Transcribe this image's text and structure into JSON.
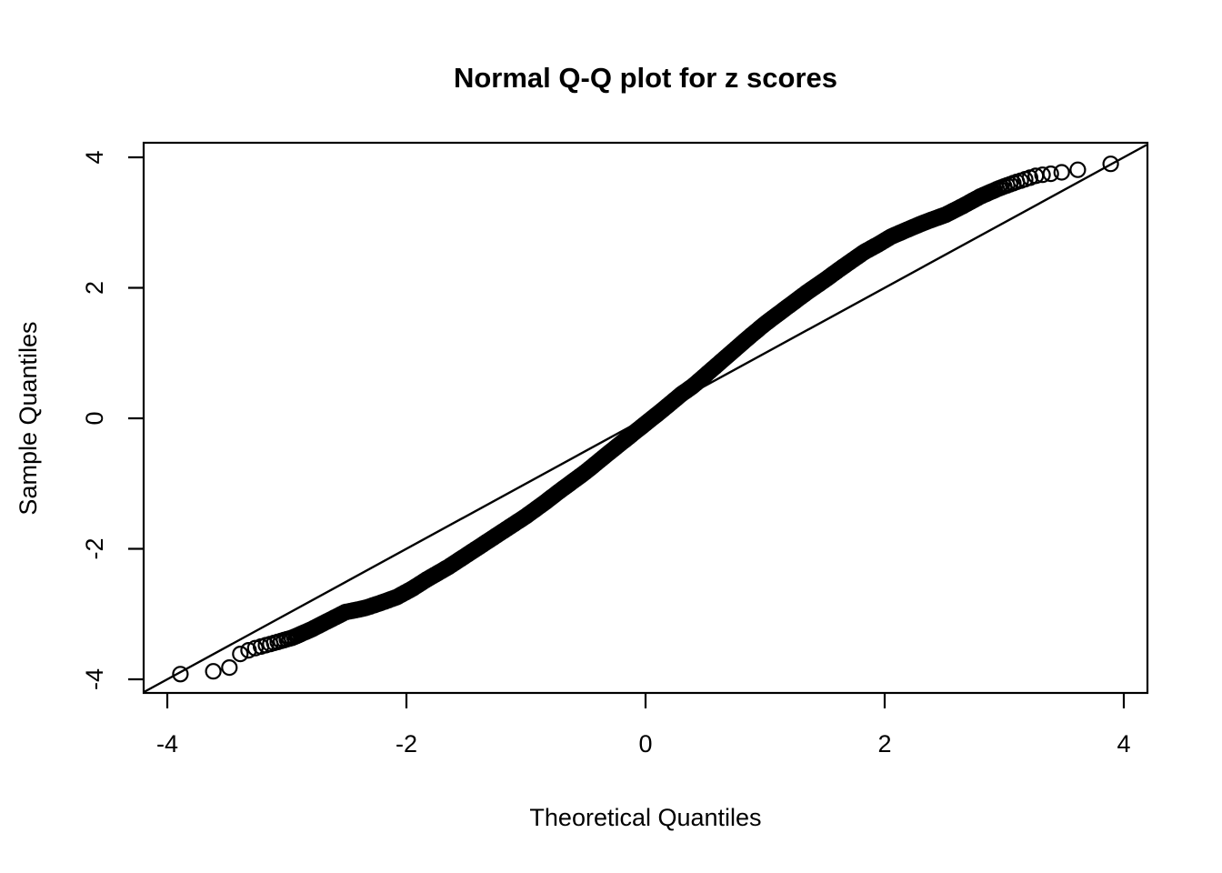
{
  "chart_data": {
    "type": "scatter",
    "subtype": "normal-qq-plot",
    "title": "Normal Q-Q plot for z scores",
    "xlabel": "Theoretical Quantiles",
    "ylabel": "Sample Quantiles",
    "xlim": [
      -4.2,
      4.2
    ],
    "ylim": [
      -4.2,
      4.2
    ],
    "x_ticks": [
      -4,
      -2,
      0,
      2,
      4
    ],
    "y_ticks": [
      -4,
      -2,
      0,
      2,
      4
    ],
    "grid": false,
    "legend": false,
    "frame": "full-box",
    "reference_line": {
      "slope": 1,
      "intercept": 0,
      "style": "solid"
    },
    "n_points": 10000,
    "marker": {
      "shape": "open-circle",
      "radius_px": 8,
      "stroke_px": 2.2
    },
    "colors": {
      "points": "#000000",
      "reference_line": "#000000",
      "axes": "#000000",
      "background": "#ffffff"
    },
    "curve_points": [
      [
        -3.89,
        -3.92
      ],
      [
        -3.62,
        -3.88
      ],
      [
        -3.48,
        -3.82
      ],
      [
        -3.4,
        -3.62
      ],
      [
        -3.3,
        -3.54
      ],
      [
        -3.1,
        -3.44
      ],
      [
        -2.95,
        -3.36
      ],
      [
        -2.8,
        -3.24
      ],
      [
        -2.65,
        -3.1
      ],
      [
        -2.51,
        -2.97
      ],
      [
        -2.4,
        -2.93
      ],
      [
        -2.33,
        -2.9
      ],
      [
        -2.2,
        -2.82
      ],
      [
        -2.08,
        -2.74
      ],
      [
        -1.95,
        -2.61
      ],
      [
        -1.83,
        -2.47
      ],
      [
        -1.65,
        -2.28
      ],
      [
        -1.5,
        -2.1
      ],
      [
        -1.35,
        -1.92
      ],
      [
        -1.2,
        -1.74
      ],
      [
        -1.0,
        -1.5
      ],
      [
        -0.85,
        -1.3
      ],
      [
        -0.7,
        -1.09
      ],
      [
        -0.5,
        -0.82
      ],
      [
        -0.3,
        -0.52
      ],
      [
        -0.15,
        -0.3
      ],
      [
        0.0,
        -0.08
      ],
      [
        0.15,
        0.14
      ],
      [
        0.3,
        0.37
      ],
      [
        0.4,
        0.5
      ],
      [
        0.5,
        0.66
      ],
      [
        0.7,
        0.98
      ],
      [
        0.85,
        1.22
      ],
      [
        1.0,
        1.45
      ],
      [
        1.16,
        1.67
      ],
      [
        1.35,
        1.93
      ],
      [
        1.5,
        2.12
      ],
      [
        1.65,
        2.32
      ],
      [
        1.83,
        2.55
      ],
      [
        1.95,
        2.67
      ],
      [
        2.05,
        2.78
      ],
      [
        2.2,
        2.9
      ],
      [
        2.33,
        3.0
      ],
      [
        2.51,
        3.12
      ],
      [
        2.65,
        3.25
      ],
      [
        2.8,
        3.4
      ],
      [
        2.95,
        3.52
      ],
      [
        3.1,
        3.62
      ],
      [
        3.27,
        3.72
      ],
      [
        3.44,
        3.76
      ],
      [
        3.56,
        3.79
      ],
      [
        3.89,
        3.9
      ]
    ]
  }
}
